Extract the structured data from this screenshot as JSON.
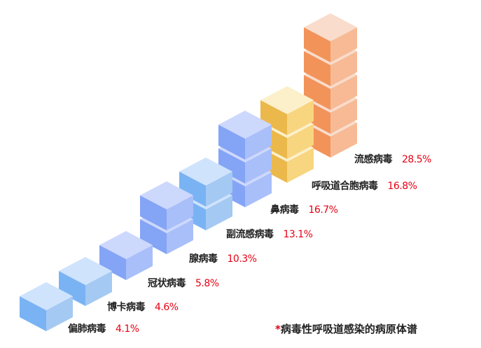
{
  "chart_data": {
    "type": "bar",
    "style": "isometric stacked cubes",
    "categories": [
      "偏肺病毒",
      "博卡病毒",
      "冠状病毒",
      "腺病毒",
      "副流感病毒",
      "鼻病毒",
      "呼吸道合胞病毒",
      "流感病毒"
    ],
    "values": [
      4.1,
      4.6,
      5.8,
      10.3,
      13.1,
      16.7,
      16.8,
      28.5
    ],
    "value_labels": [
      "4.1%",
      "4.6%",
      "5.8%",
      "10.3%",
      "13.1%",
      "16.7%",
      "16.8%",
      "28.5%"
    ],
    "cube_counts": [
      1,
      1,
      1,
      2,
      2,
      3,
      3,
      5
    ],
    "unit": "%",
    "colors": [
      "light-blue",
      "light-blue",
      "periwinkle",
      "periwinkle",
      "light-blue",
      "periwinkle",
      "yellow",
      "orange"
    ],
    "palette": {
      "light-blue": {
        "top": "#cfe3fd",
        "left": "#7ab3f3",
        "right": "#a4c9f3"
      },
      "periwinkle": {
        "top": "#cdd8fd",
        "left": "#84a4f5",
        "right": "#a9bffa"
      },
      "yellow": {
        "top": "#fcf0cb",
        "left": "#ebb84c",
        "right": "#f8d57f"
      },
      "orange": {
        "top": "#f9dccc",
        "left": "#f2935a",
        "right": "#f7ba95"
      }
    },
    "value_color": "#e60012",
    "footnote_mark": "*",
    "footnote": "病毒性呼吸道感染的病原体谱"
  }
}
